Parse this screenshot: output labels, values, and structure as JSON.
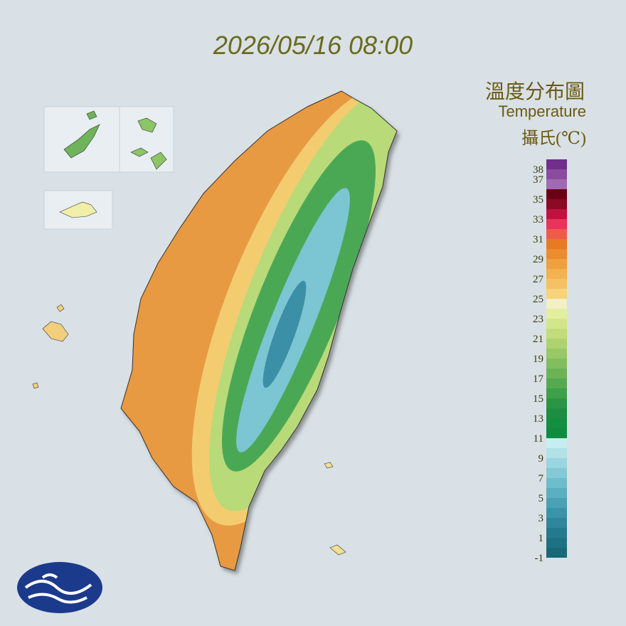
{
  "timestamp": "2026/05/16 08:00",
  "legend": {
    "title_zh": "溫度分布圖",
    "title_en": "Temperature",
    "unit": "攝氏(℃)",
    "labels": [
      38,
      37,
      35,
      33,
      31,
      29,
      27,
      25,
      23,
      21,
      19,
      17,
      15,
      13,
      11,
      9,
      7,
      5,
      3,
      1,
      -1
    ],
    "colors": [
      "#6f2f8a",
      "#8a4c9f",
      "#a16bb3",
      "#6b0014",
      "#8c0a26",
      "#c2113f",
      "#e8335a",
      "#ef5a4a",
      "#e97922",
      "#ec8c2c",
      "#f0a03c",
      "#f3b24f",
      "#f5c262",
      "#f7d47a",
      "#f2f0c8",
      "#e3ef9f",
      "#d4e68a",
      "#c2dc7a",
      "#aed26f",
      "#99c866",
      "#82bd5e",
      "#6cb357",
      "#56a951",
      "#3f9f4a",
      "#2c9545",
      "#1d8d41",
      "#129040",
      "#0f8c3f",
      "#c6eef0",
      "#b0e2e8",
      "#9ad6df",
      "#84c9d5",
      "#6fbccb",
      "#5caec1",
      "#4aa0b5",
      "#3b93a9",
      "#2f869c",
      "#25798f",
      "#1e7083",
      "#186878"
    ]
  }
}
